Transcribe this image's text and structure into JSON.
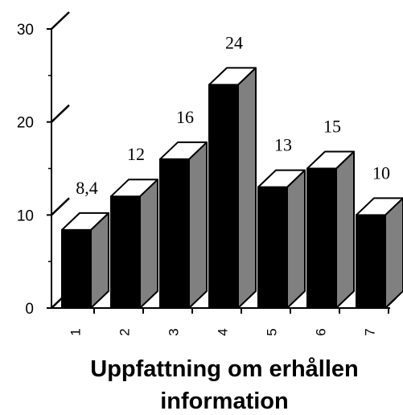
{
  "chart_data": {
    "type": "bar",
    "style": "3d",
    "categories": [
      "1",
      "2",
      "3",
      "4",
      "5",
      "6",
      "7"
    ],
    "values": [
      8.4,
      12,
      16,
      24,
      13,
      15,
      10
    ],
    "data_labels": [
      "8,4",
      "12",
      "16",
      "24",
      "13",
      "15",
      "10"
    ],
    "ylim": [
      0,
      30
    ],
    "yticks": [
      0,
      10,
      20,
      30
    ],
    "xlabel": "Uppfattning om erhållen information",
    "xlabel_lines": [
      "Uppfattning om erhållen",
      "information"
    ],
    "title": "",
    "ylabel": "",
    "grid": false,
    "legend": "none",
    "axis_break_marks": true,
    "colors": {
      "bar_front": "#000000",
      "bar_side": "#808080",
      "bar_top": "#ffffff",
      "outline": "#000000"
    }
  }
}
